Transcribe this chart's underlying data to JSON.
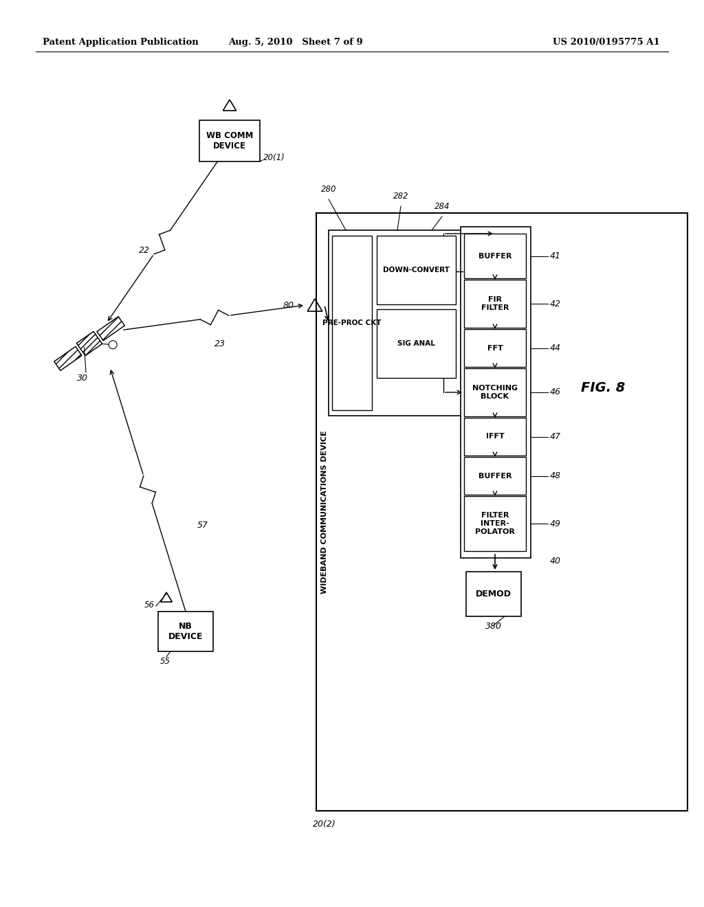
{
  "bg_color": "#ffffff",
  "header_left": "Patent Application Publication",
  "header_center": "Aug. 5, 2010   Sheet 7 of 9",
  "header_right": "US 2010/0195775 A1",
  "fig_label": "FIG. 8"
}
